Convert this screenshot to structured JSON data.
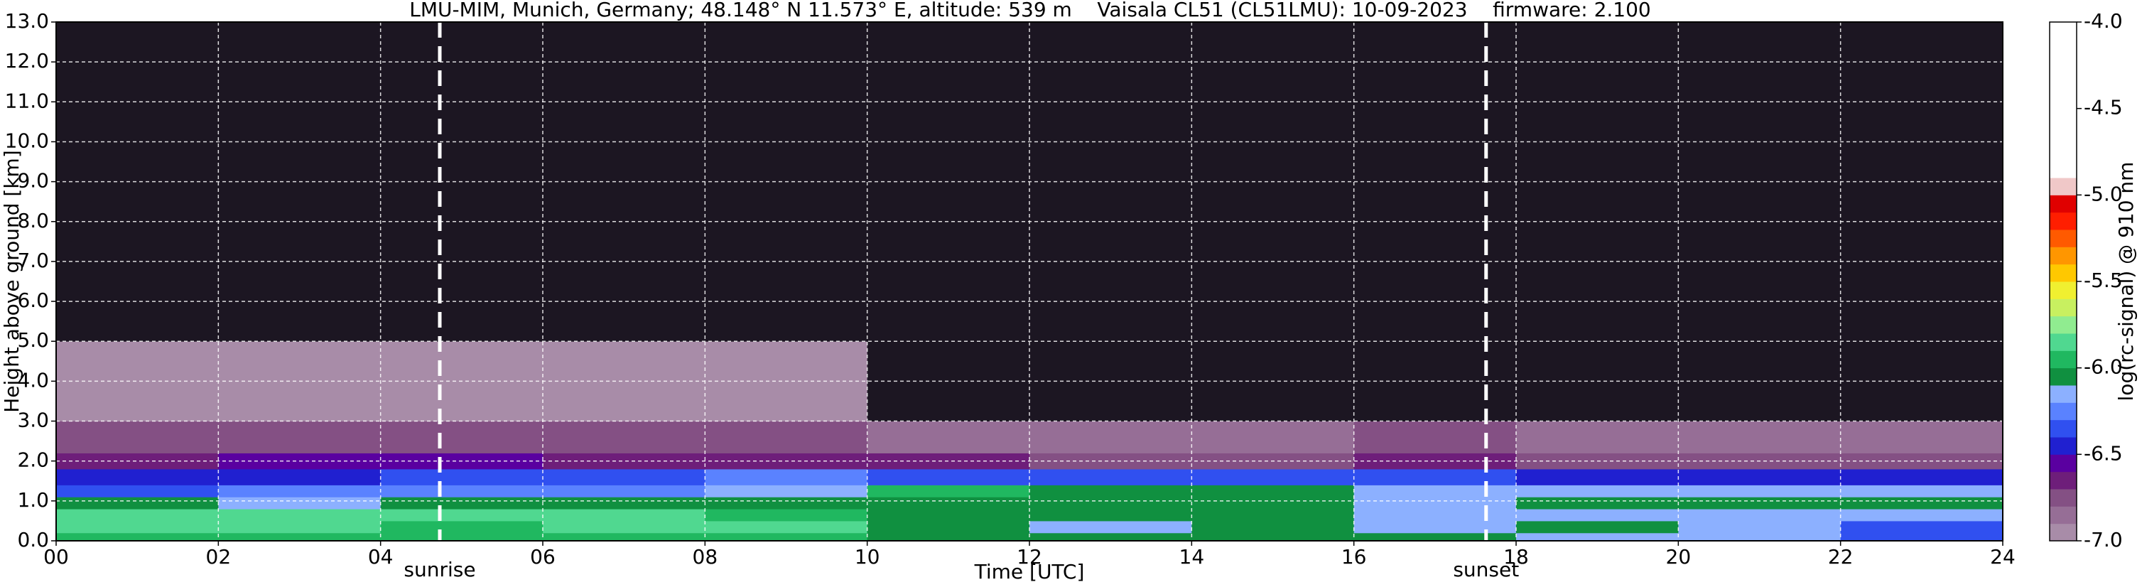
{
  "chart_data": {
    "type": "heatmap",
    "title": "LMU-MIM, Munich, Germany; 48.148° N 11.573° E, altitude: 539 m    Vaisala CL51 (CL51LMU): 10-09-2023    firmware: 2.100",
    "xlabel": "Time [UTC]",
    "ylabel": "Height above ground [km]",
    "xlim": [
      0,
      24
    ],
    "ylim": [
      0,
      13
    ],
    "xticks": [
      {
        "value": 0,
        "label": "00"
      },
      {
        "value": 2,
        "label": "02"
      },
      {
        "value": 4,
        "label": "04"
      },
      {
        "value": 6,
        "label": "06"
      },
      {
        "value": 8,
        "label": "08"
      },
      {
        "value": 10,
        "label": "10"
      },
      {
        "value": 12,
        "label": "12"
      },
      {
        "value": 14,
        "label": "14"
      },
      {
        "value": 16,
        "label": "16"
      },
      {
        "value": 18,
        "label": "18"
      },
      {
        "value": 20,
        "label": "20"
      },
      {
        "value": 22,
        "label": "22"
      },
      {
        "value": 24,
        "label": "24"
      }
    ],
    "yticks": [
      {
        "value": 0,
        "label": "0.0"
      },
      {
        "value": 1,
        "label": "1.0"
      },
      {
        "value": 2,
        "label": "2.0"
      },
      {
        "value": 3,
        "label": "3.0"
      },
      {
        "value": 4,
        "label": "4.0"
      },
      {
        "value": 5,
        "label": "5.0"
      },
      {
        "value": 6,
        "label": "6.0"
      },
      {
        "value": 7,
        "label": "7.0"
      },
      {
        "value": 8,
        "label": "8.0"
      },
      {
        "value": 9,
        "label": "9.0"
      },
      {
        "value": 10,
        "label": "10.0"
      },
      {
        "value": 11,
        "label": "11.0"
      },
      {
        "value": 12,
        "label": "12.0"
      },
      {
        "value": 13,
        "label": "13.0"
      }
    ],
    "grid": true,
    "x_edges": [
      0,
      2,
      4,
      6,
      8,
      10,
      12,
      14,
      16,
      18,
      20,
      22,
      24
    ],
    "y_edges": [
      0,
      0.2,
      0.5,
      0.8,
      1.1,
      1.4,
      1.8,
      2.2,
      3,
      5,
      13
    ],
    "z": [
      [
        -6.0,
        -6.0,
        -6.0,
        -6.0,
        -5.95,
        -6.1,
        -6.1,
        -6.1,
        -6.1,
        -6.15,
        -6.2,
        -6.35
      ],
      [
        -5.9,
        -5.9,
        -5.95,
        -5.9,
        -5.9,
        -6.1,
        -6.15,
        -6.1,
        -6.15,
        -6.1,
        -6.2,
        -6.4
      ],
      [
        -5.85,
        -5.85,
        -5.9,
        -5.9,
        -5.95,
        -6.05,
        -6.1,
        -6.1,
        -6.2,
        -6.15,
        -6.15,
        -6.2
      ],
      [
        -6.1,
        -6.15,
        -6.1,
        -6.1,
        -6.1,
        -6.05,
        -6.1,
        -6.1,
        -6.15,
        -6.1,
        -6.1,
        -6.1
      ],
      [
        -6.35,
        -6.3,
        -6.3,
        -6.25,
        -6.2,
        -5.95,
        -6.1,
        -6.1,
        -6.2,
        -6.2,
        -6.15,
        -6.15
      ],
      [
        -6.45,
        -6.45,
        -6.4,
        -6.4,
        -6.3,
        -6.35,
        -6.4,
        -6.35,
        -6.35,
        -6.45,
        -6.45,
        -6.45
      ],
      [
        -6.65,
        -6.6,
        -6.6,
        -6.65,
        -6.65,
        -6.7,
        -6.75,
        -6.75,
        -6.65,
        -6.75,
        -6.8,
        -6.8
      ],
      [
        -6.75,
        -6.75,
        -6.8,
        -6.8,
        -6.8,
        -6.85,
        -6.85,
        -6.85,
        -6.8,
        -6.85,
        -6.9,
        -6.9
      ],
      [
        -6.95,
        -6.95,
        -6.95,
        -6.95,
        -6.95,
        -7.1,
        -7.1,
        -7.1,
        -7.1,
        -7.1,
        -7.1,
        -7.1
      ],
      [
        -7.3,
        -7.3,
        -7.3,
        -7.3,
        -7.3,
        -7.3,
        -7.3,
        -7.3,
        -7.3,
        -7.3,
        -7.3,
        -7.3
      ]
    ],
    "under_color": "#1c1622",
    "vlines": [
      {
        "x": 4.73,
        "label": "sunrise"
      },
      {
        "x": 17.63,
        "label": "sunset"
      }
    ],
    "colorbar": {
      "label": "log(rc-signal) @ 910 nm",
      "lim": [
        -7,
        -4
      ],
      "levels": [
        -7.0,
        -6.9,
        -6.8,
        -6.7,
        -6.6,
        -6.5,
        -6.4,
        -6.3,
        -6.2,
        -6.1,
        -6.0,
        -5.9,
        -5.8,
        -5.7,
        -5.6,
        -5.5,
        -5.4,
        -5.3,
        -5.2,
        -5.1,
        -5.0,
        -4.9,
        -4.0
      ],
      "colors": [
        "#a88ca8",
        "#966e96",
        "#845084",
        "#6e1e7a",
        "#5a00a0",
        "#2020d0",
        "#3050f0",
        "#5a82ff",
        "#8cb0ff",
        "#109040",
        "#20b860",
        "#50d890",
        "#90ec90",
        "#c8f060",
        "#f0f030",
        "#ffc800",
        "#ff9600",
        "#ff5a00",
        "#ff1e00",
        "#e00000",
        "#f0c8c8",
        "#ffffff"
      ],
      "ticks": [
        {
          "value": -7,
          "label": "-7.0"
        },
        -6.5,
        {
          "value": -6,
          "label": "-6.0"
        },
        -5.5,
        {
          "value": -5,
          "label": "-5.0"
        },
        -4.5,
        {
          "value": -4,
          "label": "-4.0"
        }
      ]
    }
  }
}
